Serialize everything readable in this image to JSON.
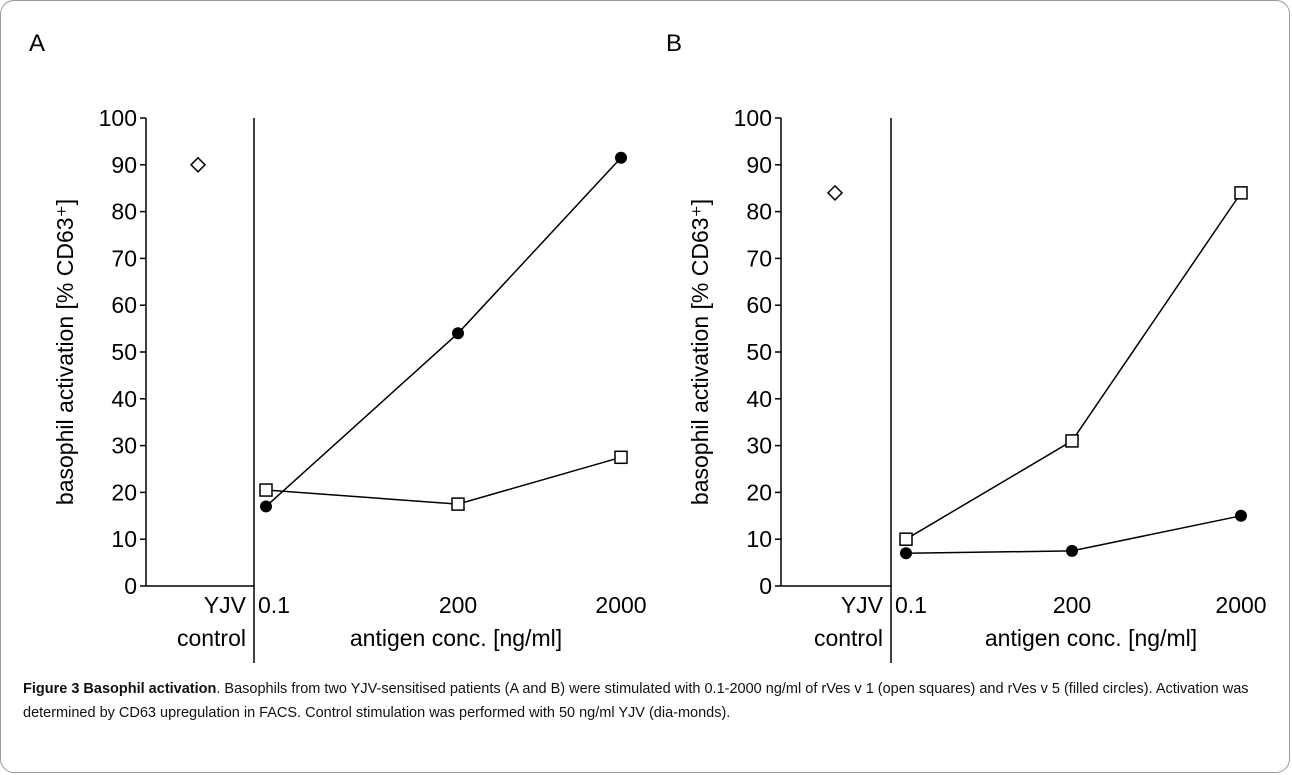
{
  "chart_data": [
    {
      "type": "line",
      "panel": "A",
      "ylabel": "basophil activation [% CD63⁺]",
      "xlabel": "antigen conc. [ng/ml]",
      "control_label": [
        "YJV",
        "control"
      ],
      "control_value": 90,
      "categories": [
        "0.1",
        "200",
        "2000"
      ],
      "series": [
        {
          "marker": "square",
          "color": "#000000",
          "values": [
            20.5,
            17.5,
            27.5
          ]
        },
        {
          "marker": "circle",
          "color": "#000000",
          "values": [
            17,
            54,
            91.5
          ]
        }
      ],
      "ylim": [
        0,
        100
      ],
      "yticks": [
        0,
        10,
        20,
        30,
        40,
        50,
        60,
        70,
        80,
        90,
        100
      ]
    },
    {
      "type": "line",
      "panel": "B",
      "ylabel": "basophil activation [% CD63⁺]",
      "xlabel": "antigen conc. [ng/ml]",
      "control_label": [
        "YJV",
        "control"
      ],
      "control_value": 84,
      "categories": [
        "0.1",
        "200",
        "2000"
      ],
      "series": [
        {
          "marker": "square",
          "color": "#000000",
          "values": [
            10,
            31,
            84
          ]
        },
        {
          "marker": "circle",
          "color": "#000000",
          "values": [
            7,
            7.5,
            15
          ]
        }
      ],
      "ylim": [
        0,
        100
      ],
      "yticks": [
        0,
        10,
        20,
        30,
        40,
        50,
        60,
        70,
        80,
        90,
        100
      ]
    }
  ],
  "caption": {
    "title": "Figure 3 Basophil activation",
    "text": ". Basophils from two YJV-sensitised patients (A and B) were stimulated with 0.1-2000 ng/ml of rVes v 1 (open squares) and rVes v 5 (filled circles). Activation was determined by CD63 upregulation in FACS. Control stimulation was performed with 50 ng/ml YJV (dia-monds)."
  }
}
